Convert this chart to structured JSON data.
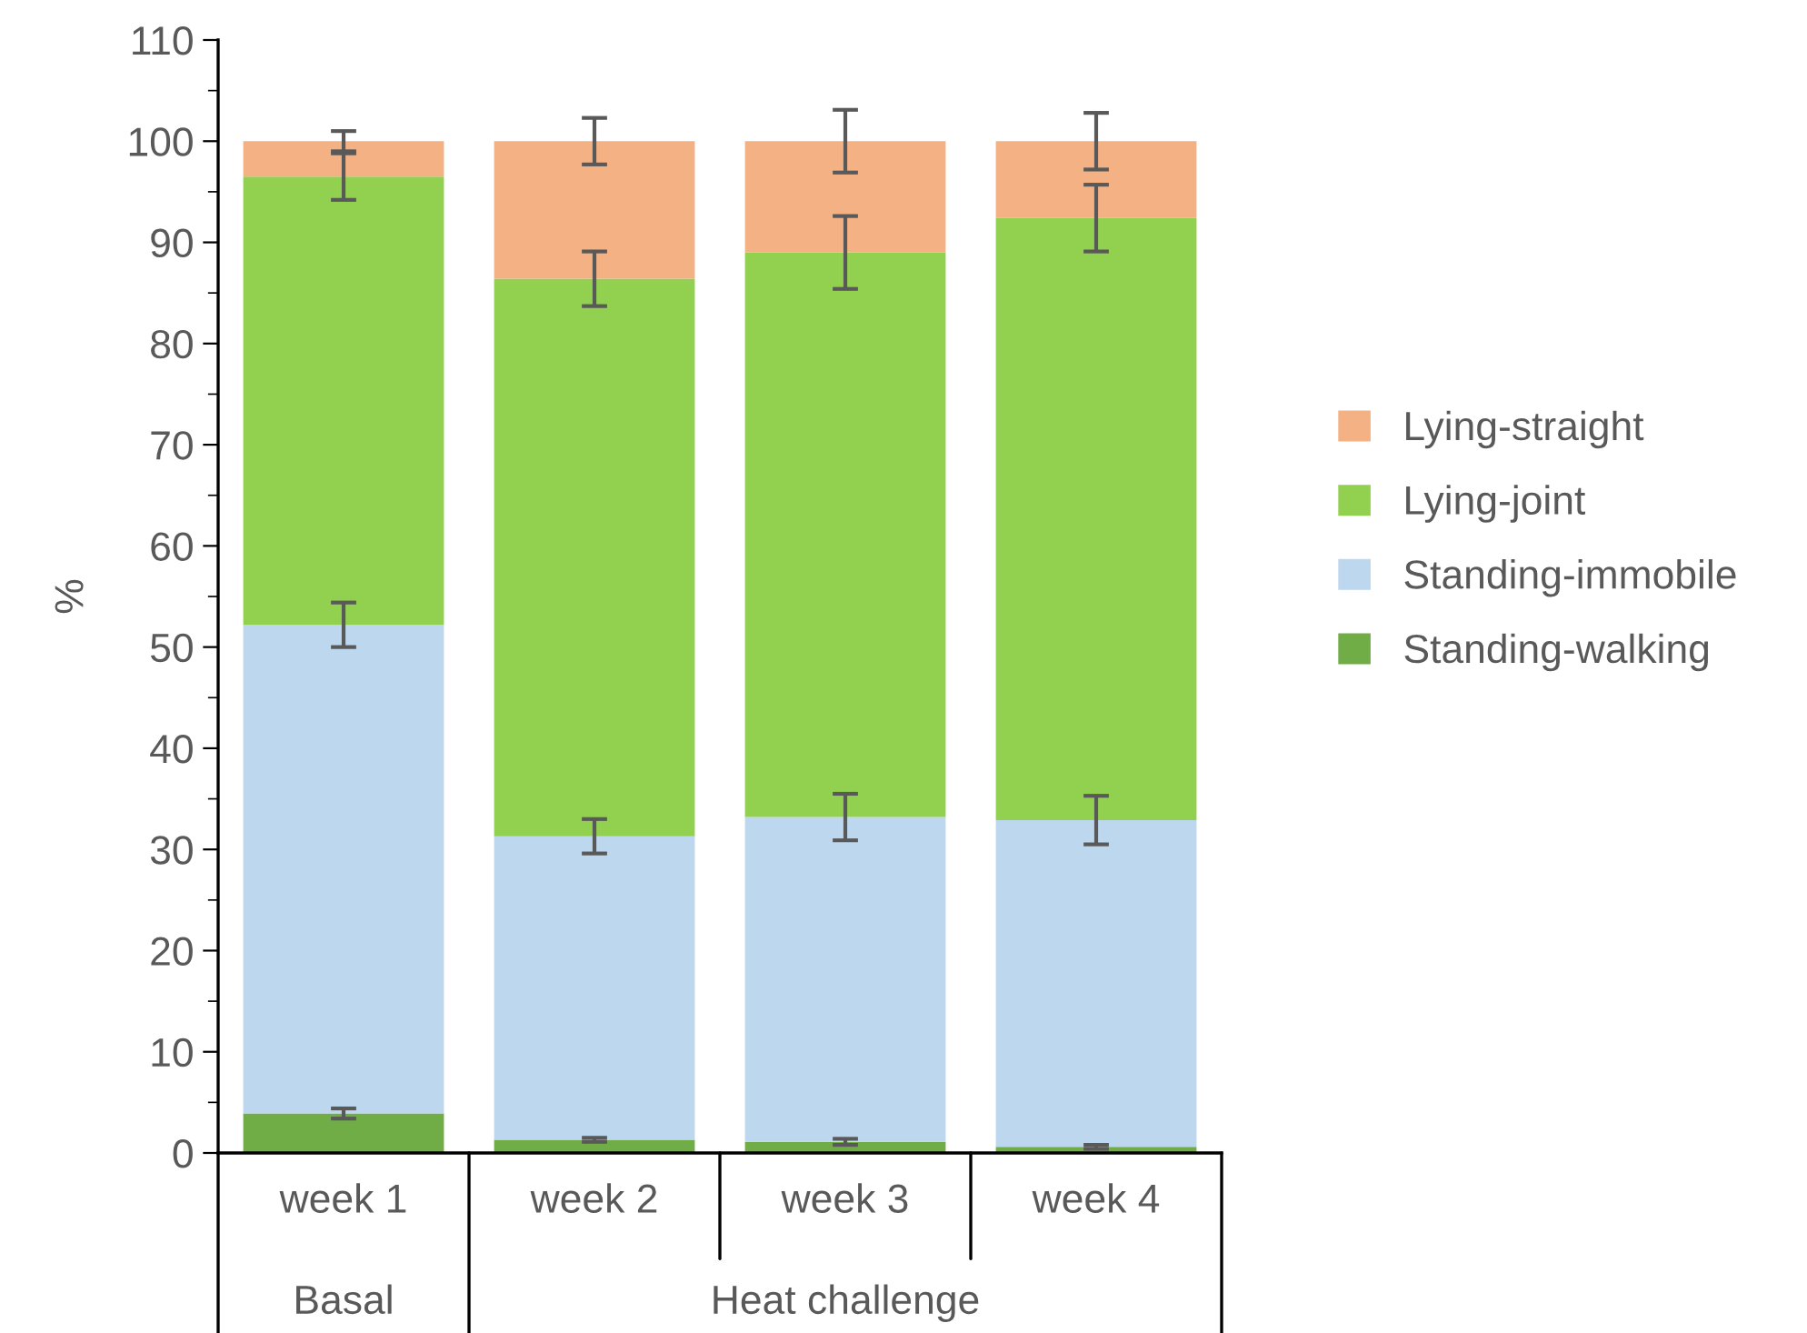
{
  "chart_data": {
    "type": "bar",
    "stacked": true,
    "ylabel": "%",
    "categories": [
      "week 1",
      "week 2",
      "week 3",
      "week 4"
    ],
    "series": [
      {
        "name": "Standing-walking",
        "color": "#70ad47",
        "values": [
          3.9,
          1.3,
          1.1,
          0.6
        ],
        "errors": [
          0.5,
          0.2,
          0.3,
          0.2
        ]
      },
      {
        "name": "Standing-immobile",
        "color": "#bdd7ee",
        "values": [
          48.3,
          30.0,
          32.1,
          32.3
        ],
        "errors": [
          2.2,
          1.7,
          2.3,
          2.4
        ]
      },
      {
        "name": "Lying-joint",
        "color": "#92d050",
        "values": [
          44.3,
          55.1,
          55.8,
          59.5
        ],
        "errors": [
          2.3,
          2.7,
          3.6,
          3.3
        ]
      },
      {
        "name": "Lying-straight",
        "color": "#f4b183",
        "values": [
          3.5,
          13.6,
          11.0,
          7.6
        ],
        "errors": [
          1.0,
          2.3,
          3.1,
          2.8
        ]
      }
    ],
    "ylim": [
      0,
      110
    ],
    "yticks": [
      0,
      10,
      20,
      30,
      40,
      50,
      60,
      70,
      80,
      90,
      100,
      110
    ],
    "grid": false,
    "legend": "right",
    "annotations": [
      "Basal",
      "Heat challenge"
    ]
  }
}
